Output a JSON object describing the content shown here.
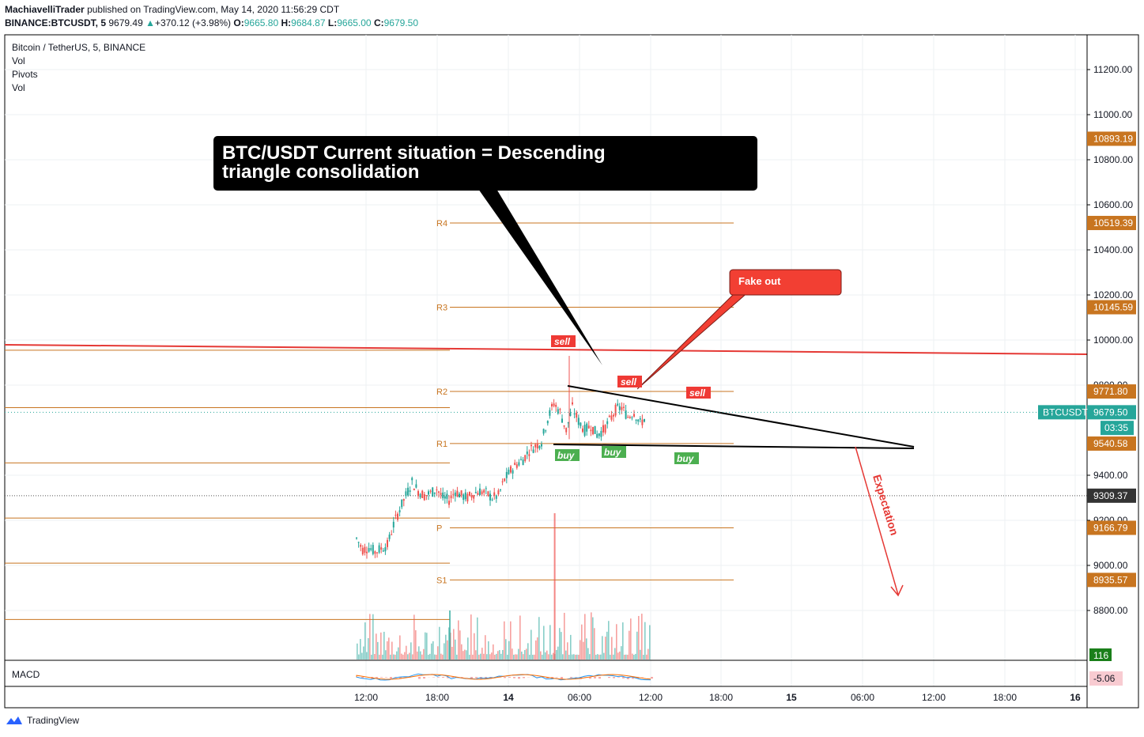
{
  "header": {
    "author": "MachiavelliTrader",
    "published_text": "published on TradingView.com, May 14, 2020 11:56:29 CDT",
    "symbol_line_symbol": "BINANCE:BTCUSDT, 5",
    "last_price": "9679.49",
    "change": "+370.12 (+3.98%)",
    "o_label": "O:",
    "o_value": "9665.80",
    "h_label": "H:",
    "h_value": "9684.87",
    "l_label": "L:",
    "l_value": "9665.00",
    "c_label": "C:",
    "c_value": "9679.50"
  },
  "legend": {
    "title": "Bitcoin / TetherUS, 5, BINANCE",
    "vol1": "Vol",
    "pivots": "Pivots",
    "vol2": "Vol",
    "macd": "MACD"
  },
  "footer": {
    "brand": "TradingView"
  },
  "colors": {
    "up": "#26a69a",
    "down": "#ef5350",
    "pivot": "#c87520",
    "resistance": "#e53935",
    "callout_black": "#000000",
    "callout_red": "#f23f33",
    "buy_bg": "#4caf50",
    "sell_bg": "#ef3a35",
    "price_tag": "#26a69a"
  },
  "chart_data": {
    "type": "candlestick",
    "symbol": "BTCUSDT",
    "ylim": [
      8700,
      11300
    ],
    "y_ticks": [
      8800,
      9000,
      9200,
      9400,
      9800,
      10000,
      10200,
      10400,
      10600,
      10800,
      11000,
      11200
    ],
    "y_tick_labels": [
      "8800.00",
      "9000.00",
      "9200.00",
      "9400.00",
      "9800.00",
      "10000.00",
      "10200.00",
      "10400.00",
      "10600.00",
      "10800.00",
      "11000.00",
      "11200.00"
    ],
    "x_tick_labels": [
      "12:00",
      "18:00",
      "14",
      "06:00",
      "12:00",
      "18:00",
      "15",
      "06:00",
      "12:00",
      "18:00",
      "16"
    ],
    "price_tags": [
      {
        "label": "10893.19",
        "value": 10893.19
      },
      {
        "label": "10519.39",
        "value": 10519.39
      },
      {
        "label": "10145.59",
        "value": 10145.59
      },
      {
        "label": "9771.80",
        "value": 9771.8
      },
      {
        "label": "9679.50",
        "value": 9679.5,
        "current": true
      },
      {
        "label": "03:35",
        "value": 9610
      },
      {
        "label": "9540.58",
        "value": 9540.58
      },
      {
        "label": "9309.37",
        "value": 9309.37,
        "grey": true
      },
      {
        "label": "9166.79",
        "value": 9166.79
      },
      {
        "label": "8935.57",
        "value": 8935.57
      }
    ],
    "symbol_tag": "BTCUSDT",
    "volume_tag": "116",
    "macd_tag": "-5.06",
    "pivots": [
      {
        "name": "R4",
        "value": 10519.39
      },
      {
        "name": "R3",
        "value": 10145.59
      },
      {
        "name": "R2",
        "value": 9771.8
      },
      {
        "name": "R1",
        "value": 9540.58
      },
      {
        "name": "P",
        "value": 9166.79
      },
      {
        "name": "S1",
        "value": 8935.57
      }
    ],
    "prior_pivots": [
      9955,
      9700,
      9455,
      9210,
      9010,
      8760
    ],
    "horizontal_line": 9309.37,
    "series": [
      {
        "name": "close",
        "points": [
          [
            0,
            9120
          ],
          [
            2,
            9070
          ],
          [
            4,
            9080
          ],
          [
            6,
            9060
          ],
          [
            8,
            9075
          ],
          [
            10,
            9090
          ],
          [
            12,
            9180
          ],
          [
            14,
            9250
          ],
          [
            16,
            9310
          ],
          [
            18,
            9370
          ],
          [
            20,
            9330
          ],
          [
            22,
            9310
          ],
          [
            24,
            9320
          ],
          [
            26,
            9340
          ],
          [
            28,
            9300
          ],
          [
            30,
            9290
          ],
          [
            32,
            9330
          ],
          [
            34,
            9310
          ],
          [
            36,
            9300
          ],
          [
            38,
            9320
          ],
          [
            40,
            9330
          ],
          [
            42,
            9320
          ],
          [
            44,
            9300
          ],
          [
            46,
            9310
          ],
          [
            48,
            9380
          ],
          [
            50,
            9420
          ],
          [
            52,
            9450
          ],
          [
            54,
            9470
          ],
          [
            56,
            9510
          ],
          [
            58,
            9530
          ],
          [
            60,
            9550
          ],
          [
            62,
            9650
          ],
          [
            64,
            9720
          ],
          [
            66,
            9680
          ],
          [
            68,
            9600
          ],
          [
            70,
            9700
          ],
          [
            72,
            9640
          ],
          [
            74,
            9600
          ],
          [
            76,
            9620
          ],
          [
            78,
            9580
          ],
          [
            80,
            9600
          ],
          [
            82,
            9640
          ],
          [
            84,
            9690
          ],
          [
            86,
            9700
          ],
          [
            88,
            9660
          ],
          [
            90,
            9680
          ],
          [
            92,
            9630
          ],
          [
            94,
            9660
          ]
        ]
      }
    ],
    "volume_spikes": [
      [
        30,
        62
      ],
      [
        64,
        185
      ]
    ]
  },
  "annotations": {
    "main_callout": "BTC/USDT Current situation = Descending triangle consolidation",
    "main_callout_line1": "BTC/USDT Current situation = Descending",
    "main_callout_line2": "triangle consolidation",
    "fake_out": "Fake out",
    "sell": "sell",
    "buy": "buy",
    "expectation": "Expectation"
  }
}
